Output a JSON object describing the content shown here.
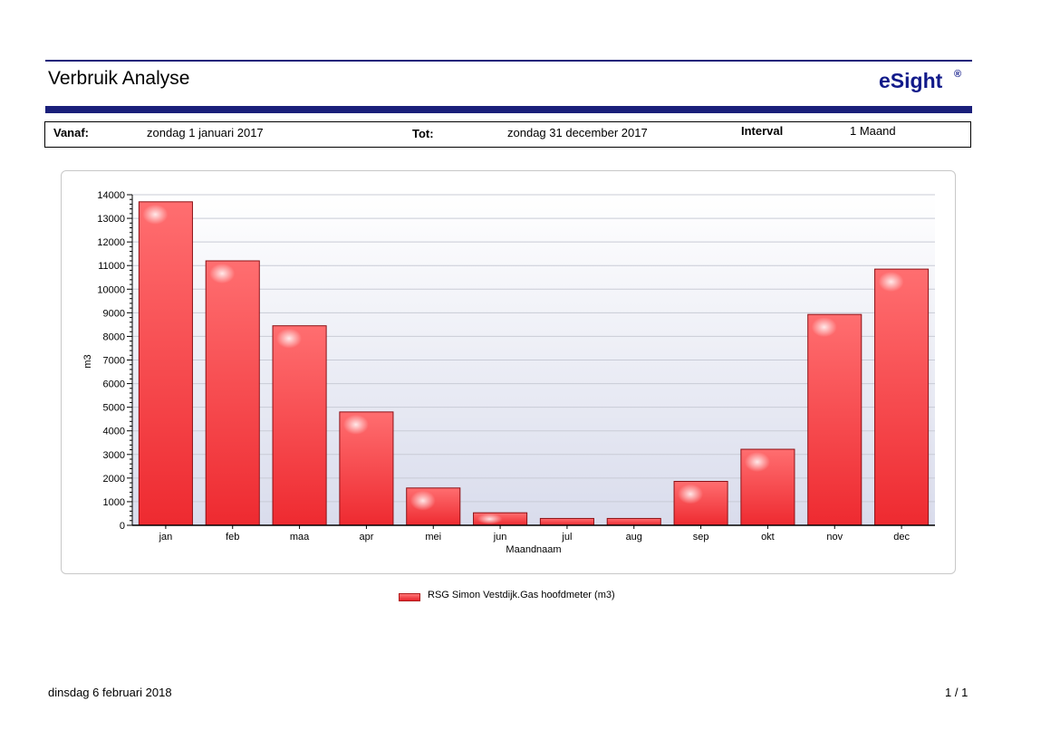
{
  "header": {
    "title": "Verbruik Analyse",
    "brand": "eSight",
    "brand_mark": "®",
    "brand_color": "#111a8a"
  },
  "info": {
    "from_label": "Vanaf:",
    "from_value": "zondag 1 januari 2017",
    "to_label": "Tot:",
    "to_value": "zondag 31 december 2017",
    "interval_label": "Interval",
    "interval_value": "1 Maand"
  },
  "chart_data": {
    "type": "bar",
    "categories": [
      "jan",
      "feb",
      "maa",
      "apr",
      "mei",
      "jun",
      "jul",
      "aug",
      "sep",
      "okt",
      "nov",
      "dec"
    ],
    "series": [
      {
        "name": "RSG Simon Vestdijk.Gas hoofdmeter (m3)",
        "values": [
          13700,
          11200,
          8450,
          4800,
          1580,
          530,
          290,
          290,
          1860,
          3220,
          8930,
          10850
        ],
        "color": "#e8242c"
      }
    ],
    "xlabel": "Maandnaam",
    "ylabel": "m3",
    "ylim": [
      0,
      14000
    ],
    "yticks": [
      0,
      1000,
      2000,
      3000,
      4000,
      5000,
      6000,
      7000,
      8000,
      9000,
      10000,
      11000,
      12000,
      13000,
      14000
    ],
    "grid": true,
    "legend_position": "bottom"
  },
  "footer": {
    "date": "dinsdag 6 februari 2018",
    "page": "1 / 1"
  }
}
